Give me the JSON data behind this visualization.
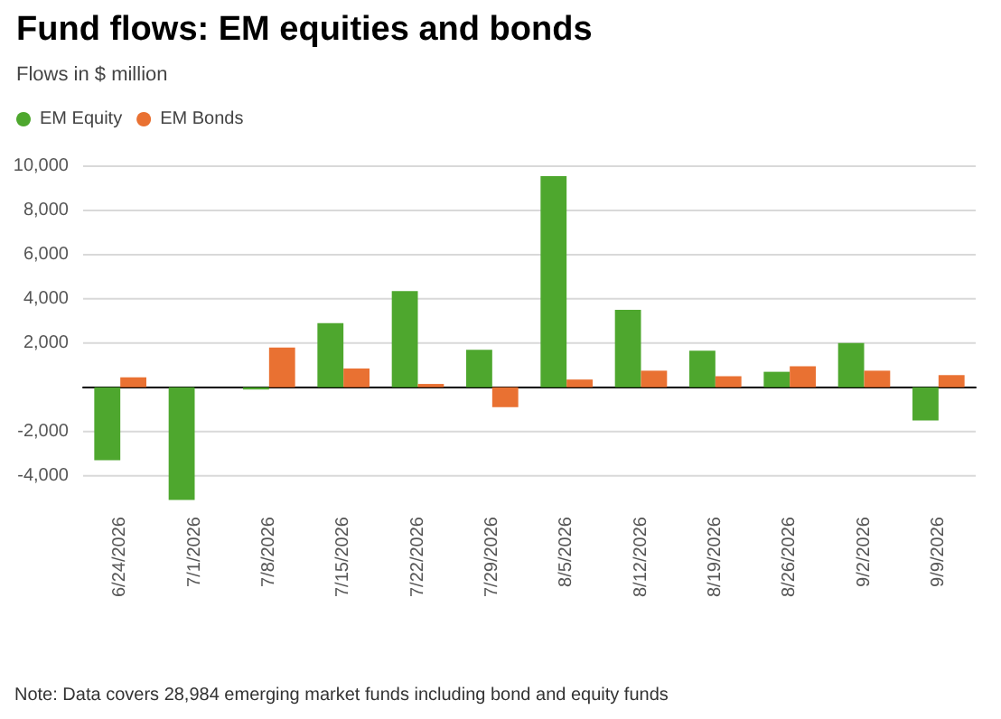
{
  "chart_data": {
    "type": "bar",
    "title": "Fund flows: EM equities and bonds",
    "subtitle": "Flows in $ million",
    "categories": [
      "6/24/2026",
      "7/1/2026",
      "7/8/2026",
      "7/15/2026",
      "7/22/2026",
      "7/29/2026",
      "8/5/2026",
      "8/12/2026",
      "8/19/2026",
      "8/26/2026",
      "9/2/2026",
      "9/9/2026"
    ],
    "series": [
      {
        "name": "EM Equity",
        "color": "#4ea72e",
        "values": [
          -3300,
          -5100,
          -100,
          2900,
          4350,
          1700,
          9550,
          3500,
          1650,
          700,
          2000,
          -1500
        ]
      },
      {
        "name": "EM Bonds",
        "color": "#e97132",
        "values": [
          450,
          0,
          1800,
          850,
          150,
          -900,
          350,
          750,
          500,
          950,
          750,
          550
        ]
      }
    ],
    "ylim": [
      -5200,
      10000
    ],
    "yticks": [
      {
        "value": -4000,
        "label": "-4,000"
      },
      {
        "value": -2000,
        "label": "-2,000"
      },
      {
        "value": 0,
        "label": null
      },
      {
        "value": 2000,
        "label": "2,000"
      },
      {
        "value": 4000,
        "label": "4,000"
      },
      {
        "value": 6000,
        "label": "6,000"
      },
      {
        "value": 8000,
        "label": "8,000"
      },
      {
        "value": 10000,
        "label": "10,000"
      }
    ],
    "grid": "y",
    "legend": "top left",
    "annotations": [
      "Note: Data covers 28,984 emerging market funds including bond and equity funds"
    ]
  }
}
